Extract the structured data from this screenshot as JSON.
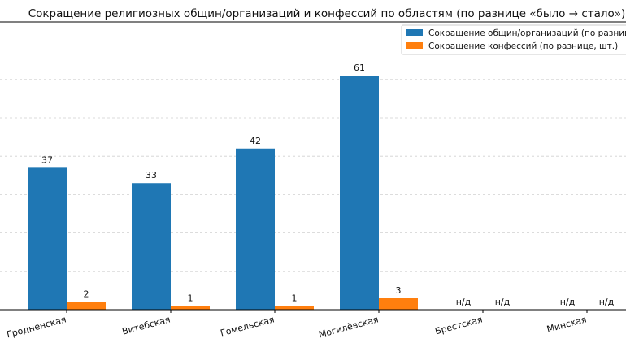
{
  "chart_data": {
    "type": "bar",
    "title": "Сокращение религиозных общин/организаций и конфессий по областям (по разнице «было → стало»)",
    "xlabel": "",
    "ylabel": "",
    "categories": [
      "Гродненская",
      "Витебская",
      "Гомельская",
      "Могилёвская",
      "Брестская",
      "Минская"
    ],
    "series": [
      {
        "name": "Сокращение общин/организаций (по разнице",
        "color": "#1f77b4",
        "values": [
          37,
          33,
          42,
          61,
          null,
          null
        ],
        "labels": [
          "37",
          "33",
          "42",
          "61",
          "н/д",
          "н/д"
        ]
      },
      {
        "name": "Сокращение конфессий (по разнице, шт.)",
        "color": "#ff7f0e",
        "values": [
          2,
          1,
          1,
          3,
          null,
          null
        ],
        "labels": [
          "2",
          "1",
          "1",
          "3",
          "н/д",
          "н/д"
        ]
      }
    ],
    "ylim": [
      0,
      75
    ],
    "grid": true,
    "legend_position": "top-right"
  }
}
